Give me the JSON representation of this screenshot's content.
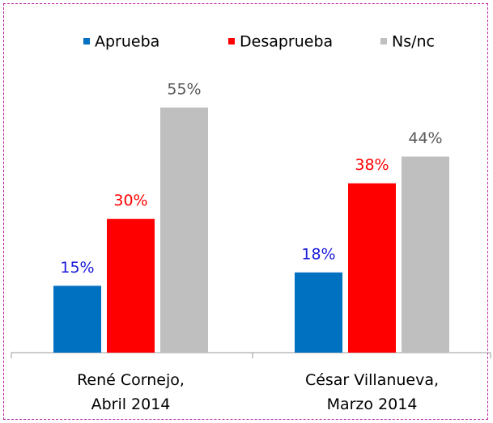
{
  "chart_data": {
    "type": "bar",
    "categories": [
      "René Cornejo,\nAbril 2014",
      "César Villanueva,\nMarzo 2014"
    ],
    "series": [
      {
        "name": "Aprueba",
        "color": "#0070c0",
        "label_color": "#1a1adc",
        "values": [
          15,
          18
        ],
        "value_labels": [
          "15%",
          "18%"
        ]
      },
      {
        "name": "Desaprueba",
        "color": "#ff0000",
        "label_color": "#ff0000",
        "values": [
          30,
          38
        ],
        "value_labels": [
          "30%",
          "38%"
        ]
      },
      {
        "name": "Ns/nc",
        "color": "#bfbfbf",
        "label_color": "#595959",
        "values": [
          55,
          44
        ],
        "value_labels": [
          "55%",
          "44%"
        ]
      }
    ],
    "legend": "top"
  }
}
